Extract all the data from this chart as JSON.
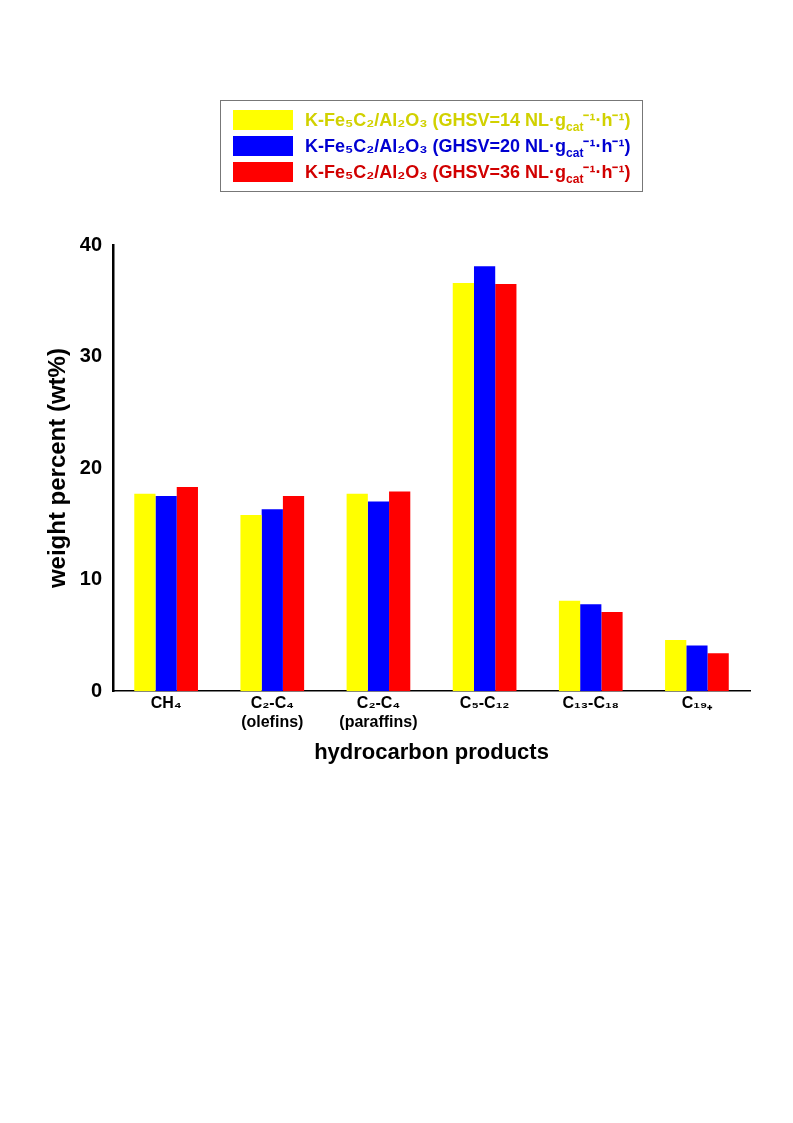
{
  "chart_data": {
    "type": "bar",
    "xlabel": "hydrocarbon products",
    "ylabel": "weight percent (wt%)",
    "categories": [
      "CH₄",
      "C₂-C₄ (olefins)",
      "C₂-C₄ (paraffins)",
      "C₅-C₁₂",
      "C₁₃-C₁₈",
      "C₁₉₊"
    ],
    "series": [
      {
        "name": "K-Fe₅C₂/Al₂O₃ (GHSV=14 NL·g$_{cat}$⁻¹·h⁻¹)",
        "color": "#ffff00",
        "values": [
          17.7,
          15.8,
          17.7,
          36.6,
          8.1,
          4.6
        ]
      },
      {
        "name": "K-Fe₅C₂/Al₂O₃ (GHSV=20 NL·g$_{cat}$⁻¹·h⁻¹)",
        "color": "#0000ff",
        "values": [
          17.5,
          16.3,
          17.0,
          38.1,
          7.8,
          4.1
        ]
      },
      {
        "name": "K-Fe₅C₂/Al₂O₃ (GHSV=36 NL·g$_{cat}$⁻¹·h⁻¹)",
        "color": "#ff0000",
        "values": [
          18.3,
          17.5,
          17.9,
          36.5,
          7.1,
          3.4
        ]
      }
    ],
    "ylim": [
      0,
      40
    ],
    "yticks": [
      0,
      10,
      20,
      30,
      40
    ],
    "grid": false,
    "legend": "top"
  }
}
